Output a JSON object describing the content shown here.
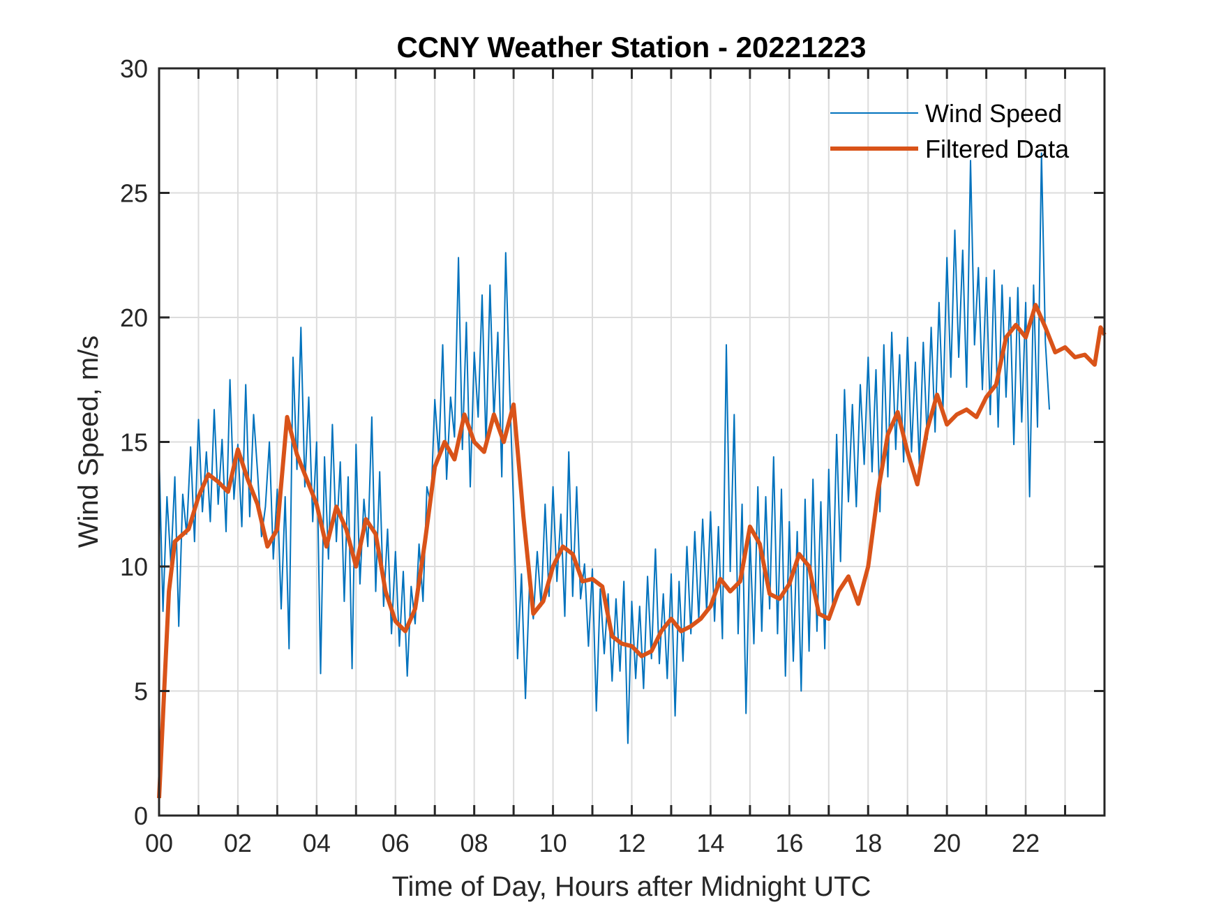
{
  "chart_data": {
    "type": "line",
    "title": "CCNY Weather Station - 20221223",
    "xlabel": "Time of Day, Hours after Midnight UTC",
    "ylabel": "Wind Speed, m/s",
    "xlim": [
      0,
      24
    ],
    "ylim": [
      0,
      30
    ],
    "grid": true,
    "x_ticks": [
      0,
      2,
      4,
      6,
      8,
      10,
      12,
      14,
      16,
      18,
      20,
      22
    ],
    "x_tick_labels": [
      "00",
      "02",
      "04",
      "06",
      "08",
      "10",
      "12",
      "14",
      "16",
      "18",
      "20",
      "22"
    ],
    "x_minor_ticks_hourly": true,
    "y_ticks": [
      0,
      5,
      10,
      15,
      20,
      25,
      30
    ],
    "y_tick_labels": [
      "0",
      "5",
      "10",
      "15",
      "20",
      "25",
      "30"
    ],
    "legend": {
      "placement": "top-right",
      "boxed": false
    },
    "series": [
      {
        "name": "Wind Speed",
        "color": "#0072BD",
        "style": "thin",
        "x_step": 0.1,
        "x_start": 0,
        "values": [
          14.5,
          8.2,
          12.8,
          10.1,
          13.6,
          7.6,
          12.9,
          11.3,
          14.8,
          11.0,
          15.9,
          12.2,
          14.6,
          11.8,
          16.3,
          12.5,
          15.1,
          11.4,
          17.5,
          12.7,
          14.9,
          11.6,
          17.3,
          12.0,
          16.1,
          13.8,
          11.2,
          12.4,
          15.0,
          10.3,
          13.1,
          8.3,
          12.8,
          6.7,
          18.4,
          13.9,
          19.6,
          13.2,
          16.8,
          11.8,
          15.0,
          5.7,
          14.4,
          10.3,
          15.7,
          11.0,
          14.2,
          8.6,
          13.6,
          5.9,
          14.9,
          9.3,
          12.7,
          10.8,
          16.0,
          9.0,
          13.8,
          8.4,
          11.5,
          7.3,
          10.6,
          6.8,
          9.8,
          5.6,
          9.2,
          7.7,
          10.9,
          8.6,
          13.2,
          12.5,
          16.7,
          14.4,
          18.9,
          13.5,
          16.8,
          15.2,
          22.4,
          14.7,
          19.8,
          13.2,
          18.6,
          16.0,
          20.9,
          14.8,
          21.3,
          15.9,
          19.4,
          13.6,
          22.6,
          17.1,
          12.4,
          6.3,
          9.7,
          4.7,
          9.1,
          7.9,
          10.6,
          8.4,
          12.5,
          8.8,
          13.2,
          9.4,
          12.1,
          8.0,
          14.6,
          8.8,
          13.2,
          8.7,
          10.1,
          6.8,
          9.9,
          4.2,
          9.1,
          6.5,
          8.9,
          5.4,
          8.7,
          5.8,
          9.4,
          2.9,
          8.6,
          5.5,
          8.4,
          5.1,
          9.6,
          6.3,
          10.7,
          6.1,
          8.9,
          5.5,
          9.7,
          4.0,
          9.4,
          6.2,
          10.8,
          7.3,
          11.4,
          7.9,
          11.9,
          8.2,
          12.2,
          7.8,
          11.6,
          7.1,
          18.9,
          9.8,
          16.1,
          7.3,
          12.5,
          4.1,
          11.2,
          6.9,
          13.2,
          7.4,
          12.8,
          8.3,
          14.4,
          7.3,
          13.1,
          5.6,
          11.8,
          6.2,
          11.4,
          5.0,
          12.7,
          6.6,
          13.5,
          7.4,
          12.6,
          6.7,
          13.9,
          8.4,
          15.3,
          10.2,
          17.1,
          12.6,
          16.5,
          12.4,
          17.3,
          14.1,
          18.4,
          13.8,
          17.9,
          12.2,
          18.9,
          13.6,
          19.4,
          14.7,
          18.5,
          14.2,
          19.2,
          14.6,
          18.2,
          14.1,
          19.0,
          15.1,
          19.6,
          15.4,
          20.6,
          16.3,
          22.4,
          17.6,
          23.5,
          18.4,
          22.7,
          17.2,
          26.3,
          18.9,
          22.0,
          17.1,
          21.6,
          16.1,
          21.9,
          15.6,
          21.3,
          16.8,
          20.8,
          14.9,
          21.2,
          15.8,
          20.6,
          12.8,
          21.3,
          15.6,
          26.6,
          19.0,
          16.3
        ]
      },
      {
        "name": "Filtered Data",
        "color": "#D95319",
        "style": "thick",
        "x": [
          0,
          0.1,
          0.25,
          0.4,
          0.75,
          1.0,
          1.25,
          1.5,
          1.75,
          2.0,
          2.25,
          2.5,
          2.75,
          3.0,
          3.25,
          3.5,
          3.75,
          4.0,
          4.25,
          4.5,
          4.75,
          5.0,
          5.25,
          5.5,
          5.75,
          6.0,
          6.25,
          6.5,
          6.75,
          7.0,
          7.25,
          7.5,
          7.75,
          8.0,
          8.25,
          8.5,
          8.75,
          9.0,
          9.25,
          9.5,
          9.75,
          10.0,
          10.25,
          10.5,
          10.75,
          11.0,
          11.25,
          11.5,
          11.75,
          12.0,
          12.25,
          12.5,
          12.75,
          13.0,
          13.25,
          13.5,
          13.75,
          14.0,
          14.25,
          14.5,
          14.75,
          15.0,
          15.25,
          15.5,
          15.75,
          16.0,
          16.25,
          16.5,
          16.75,
          17.0,
          17.25,
          17.5,
          17.75,
          18.0,
          18.25,
          18.5,
          18.75,
          19.0,
          19.25,
          19.5,
          19.75,
          20.0,
          20.25,
          20.5,
          20.75,
          21.0,
          21.25,
          21.5,
          21.75,
          22.0,
          22.25,
          22.5,
          22.75,
          23.0,
          23.25,
          23.5,
          23.75,
          23.9,
          24.0
        ],
        "values": [
          0.7,
          4.0,
          9.0,
          11.0,
          11.5,
          12.8,
          13.7,
          13.4,
          13.0,
          14.7,
          13.5,
          12.5,
          10.8,
          11.5,
          16.0,
          14.5,
          13.5,
          12.5,
          10.8,
          12.4,
          11.5,
          10.0,
          11.9,
          11.3,
          9.0,
          7.8,
          7.4,
          8.3,
          11.0,
          14.0,
          15.0,
          14.3,
          16.1,
          15.0,
          14.6,
          16.1,
          15.0,
          16.5,
          12.0,
          8.1,
          8.6,
          10.0,
          10.8,
          10.5,
          9.4,
          9.5,
          9.2,
          7.2,
          6.9,
          6.8,
          6.4,
          6.6,
          7.4,
          7.9,
          7.4,
          7.6,
          7.9,
          8.4,
          9.5,
          9.0,
          9.4,
          11.6,
          10.9,
          8.9,
          8.7,
          9.3,
          10.5,
          10.0,
          8.1,
          7.9,
          9.0,
          9.6,
          8.5,
          10.0,
          13.0,
          15.3,
          16.2,
          14.6,
          13.3,
          15.5,
          16.9,
          15.7,
          16.1,
          16.3,
          16.0,
          16.8,
          17.3,
          19.2,
          19.7,
          19.2,
          20.5,
          19.6,
          18.6,
          18.8,
          18.4,
          18.5,
          18.1,
          19.6,
          19.3
        ]
      }
    ]
  }
}
